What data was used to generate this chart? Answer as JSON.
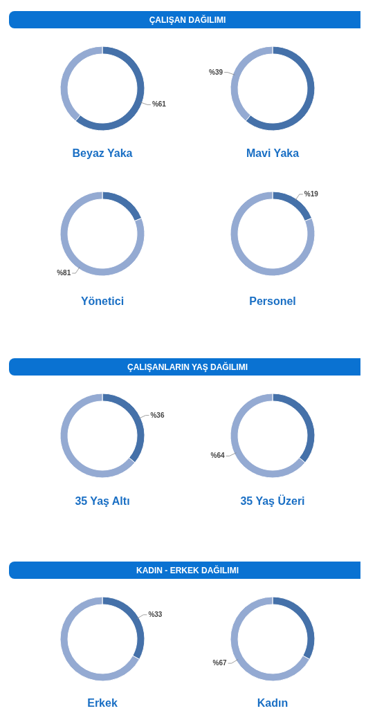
{
  "chart_data": [
    {
      "type": "other",
      "title": "ÇALIŞAN DAĞILIMI"
    },
    {
      "type": "donut",
      "title": "Beyaz Yaka",
      "categories": [
        null,
        null
      ],
      "values": [
        61,
        39
      ],
      "colors": [
        "#4571a9",
        "#94aad2"
      ],
      "value_labels": [
        "%61",
        null
      ]
    },
    {
      "type": "donut",
      "title": "Mavi Yaka",
      "categories": [
        null,
        null
      ],
      "values": [
        61,
        39
      ],
      "colors": [
        "#4571a9",
        "#94aad2"
      ],
      "value_labels": [
        null,
        "%39"
      ]
    },
    {
      "type": "donut",
      "title": "Yönetici",
      "categories": [
        null,
        null
      ],
      "values": [
        19,
        81
      ],
      "colors": [
        "#4571a9",
        "#94aad2"
      ],
      "value_labels": [
        null,
        "%81"
      ]
    },
    {
      "type": "donut",
      "title": "Personel",
      "categories": [
        null,
        null
      ],
      "values": [
        19,
        81
      ],
      "colors": [
        "#4571a9",
        "#94aad2"
      ],
      "value_labels": [
        "%19",
        null
      ]
    },
    {
      "type": "other",
      "title": "ÇALIŞANLARIN YAŞ DAĞILIMI"
    },
    {
      "type": "donut",
      "title": "35 Yaş Altı",
      "categories": [
        null,
        null
      ],
      "values": [
        36,
        64
      ],
      "colors": [
        "#4571a9",
        "#94aad2"
      ],
      "value_labels": [
        "%36",
        null
      ]
    },
    {
      "type": "donut",
      "title": "35 Yaş Üzeri",
      "categories": [
        null,
        null
      ],
      "values": [
        36,
        64
      ],
      "colors": [
        "#4571a9",
        "#94aad2"
      ],
      "value_labels": [
        null,
        "%64"
      ]
    },
    {
      "type": "other",
      "title": "KADIN - ERKEK DAĞILIMI"
    },
    {
      "type": "donut",
      "title": "Erkek",
      "categories": [
        null,
        null
      ],
      "values": [
        33,
        67
      ],
      "colors": [
        "#4571a9",
        "#94aad2"
      ],
      "value_labels": [
        "%33",
        null
      ]
    },
    {
      "type": "donut",
      "title": "Kadın",
      "categories": [
        null,
        null
      ],
      "values": [
        33,
        67
      ],
      "colors": [
        "#4571a9",
        "#94aad2"
      ],
      "value_labels": [
        null,
        "%67"
      ]
    }
  ]
}
